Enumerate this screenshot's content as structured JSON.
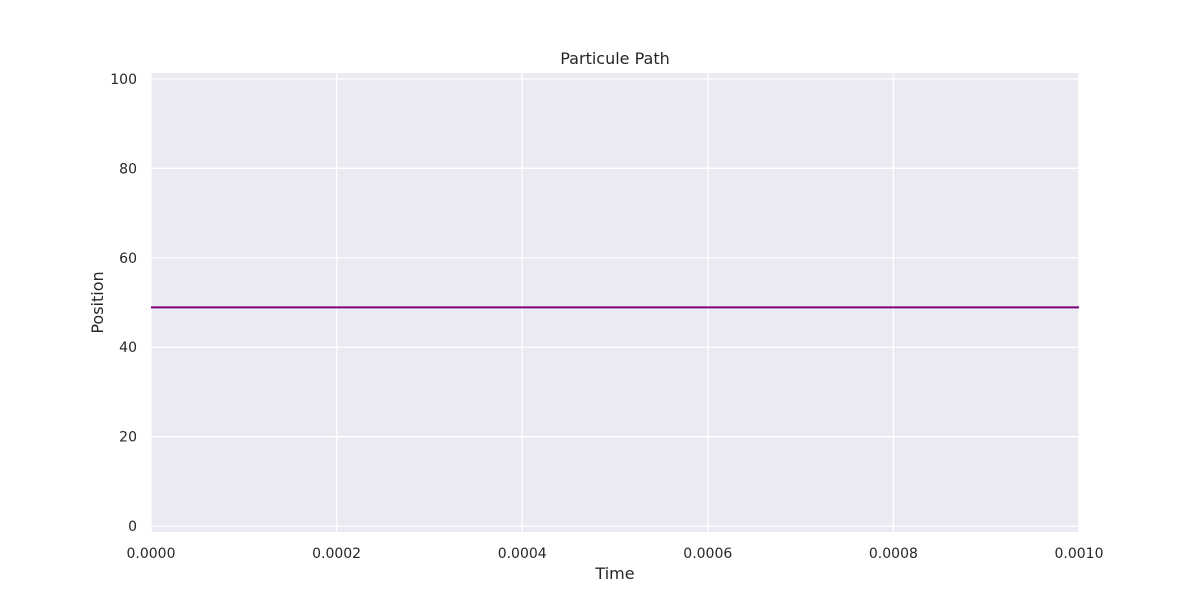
{
  "chart_data": {
    "type": "line",
    "title": "Particule Path",
    "xlabel": "Time",
    "ylabel": "Position",
    "xlim": [
      0,
      0.001
    ],
    "ylim": [
      -1.3,
      101.3
    ],
    "xticks": [
      0,
      0.0002,
      0.0004,
      0.0006,
      0.0008,
      0.001
    ],
    "xtick_labels": [
      "0.0000",
      "0.0002",
      "0.0004",
      "0.0006",
      "0.0008",
      "0.0010"
    ],
    "yticks": [
      0,
      20,
      40,
      60,
      80,
      100
    ],
    "ytick_labels": [
      "0",
      "20",
      "40",
      "60",
      "80",
      "100"
    ],
    "grid": true,
    "background": "#eaeaf2",
    "grid_color": "#ffffff",
    "series": [
      {
        "x": [
          0,
          0.001
        ],
        "y": [
          48.9,
          48.9
        ],
        "color": "#800080"
      }
    ]
  }
}
